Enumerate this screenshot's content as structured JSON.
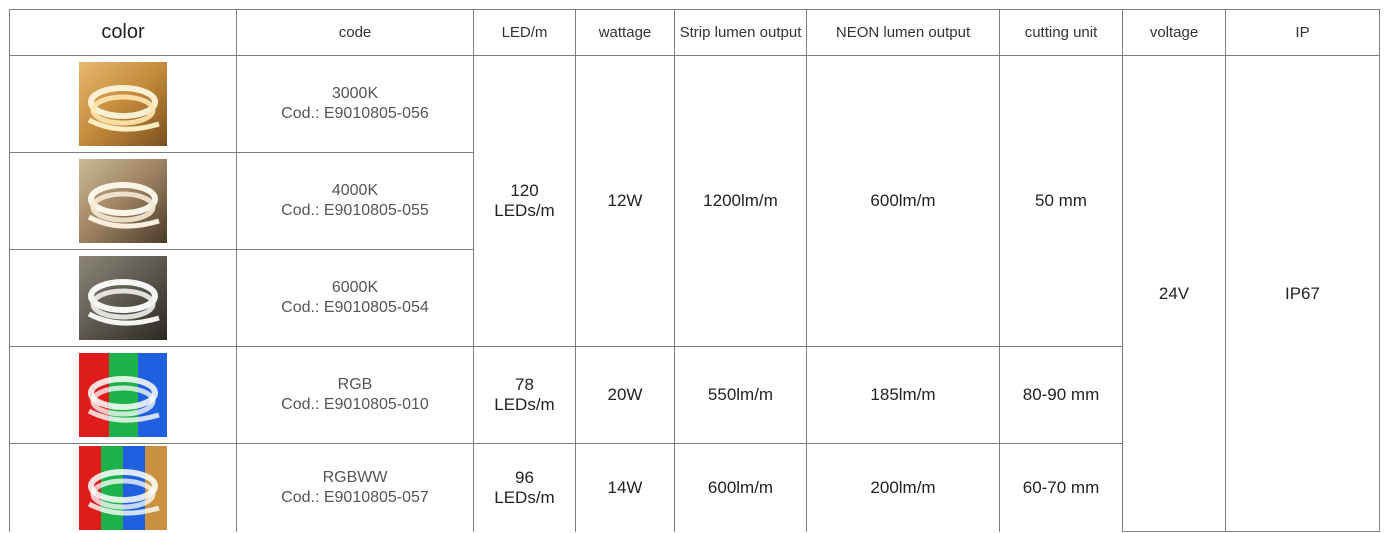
{
  "headers": {
    "color": "color",
    "code": "code",
    "led_m": "LED/m",
    "wattage": "wattage",
    "strip_lumen": "Strip lumen output",
    "neon_lumen": "NEON lumen output",
    "cutting_unit": "cutting unit",
    "voltage": "voltage",
    "ip": "IP"
  },
  "rows": [
    {
      "swatch": "warm-white-neon-strip",
      "name": "3000K",
      "code": "Cod.: E9010805-056"
    },
    {
      "swatch": "neutral-white-neon-strip",
      "name": "4000K",
      "code": "Cod.: E9010805-055"
    },
    {
      "swatch": "cool-white-neon-strip",
      "name": "6000K",
      "code": "Cod.: E9010805-054"
    },
    {
      "swatch": "rgb-neon-strip",
      "name": "RGB",
      "code": "Cod.: E9010805-010"
    },
    {
      "swatch": "rgbww-neon-strip",
      "name": "RGBWW",
      "code": "Cod.: E9010805-057"
    }
  ],
  "groups": {
    "white": {
      "led_m_line1": "120",
      "led_m_line2": "LEDs/m",
      "wattage": "12W",
      "strip_lumen": "1200lm/m",
      "neon_lumen": "600lm/m",
      "cutting_unit": "50 mm"
    },
    "rgb": {
      "led_m_line1": "78",
      "led_m_line2": "LEDs/m",
      "wattage": "20W",
      "strip_lumen": "550lm/m",
      "neon_lumen": "185lm/m",
      "cutting_unit": "80-90 mm"
    },
    "rgbww": {
      "led_m_line1": "96",
      "led_m_line2": "LEDs/m",
      "wattage": "14W",
      "strip_lumen": "600lm/m",
      "neon_lumen": "200lm/m",
      "cutting_unit": "60-70 mm"
    }
  },
  "common": {
    "voltage": "24V",
    "ip": "IP67"
  },
  "colors": {
    "border": "#7d7d7d",
    "warm": "#c9913f",
    "neutral": "#a8916f",
    "cool": "#6e665a",
    "red": "#e01b1b",
    "green": "#1db14a",
    "blue": "#1f5fe0"
  }
}
